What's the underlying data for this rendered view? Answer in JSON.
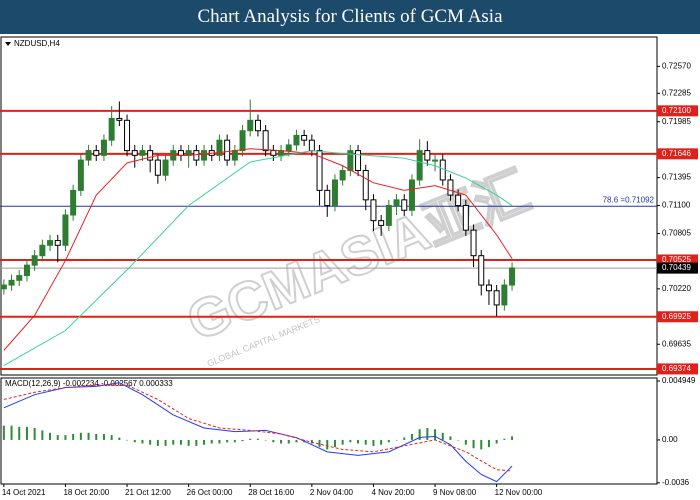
{
  "title": "Chart Analysis for Clients of GCM Asia",
  "watermark": "GCMASIA亚汇",
  "watermark_sub": "GLOBAL CAPITAL MARKETS",
  "chart_data": [
    {
      "type": "candlestick",
      "symbol_label": "NZDUSD,H4",
      "categories": [
        "14 Oct 2021",
        null,
        null,
        null,
        null,
        null,
        null,
        null,
        "18 Oct 20:00",
        null,
        null,
        null,
        null,
        null,
        null,
        null,
        "21 Oct 12:00",
        null,
        null,
        null,
        null,
        null,
        null,
        null,
        "26 Oct 00:00",
        null,
        null,
        null,
        null,
        null,
        null,
        null,
        "28 Oct 16:00",
        null,
        null,
        null,
        null,
        null,
        null,
        null,
        "2 Nov 04:00",
        null,
        null,
        null,
        null,
        null,
        null,
        null,
        "4 Nov 20:00",
        null,
        null,
        null,
        null,
        null,
        null,
        null,
        "9 Nov 08:00",
        null,
        null,
        null,
        null,
        null,
        null,
        null,
        "12 Nov 00:00",
        null,
        null
      ],
      "open": [
        0.7022,
        0.7026,
        0.7031,
        0.7036,
        0.7047,
        0.7057,
        0.7068,
        0.7073,
        0.7068,
        0.71,
        0.7126,
        0.7158,
        0.7168,
        0.7163,
        0.7179,
        0.7202,
        0.72,
        0.7168,
        0.7163,
        0.7168,
        0.7158,
        0.7142,
        0.7158,
        0.7168,
        0.7163,
        0.7168,
        0.7158,
        0.7168,
        0.7163,
        0.7179,
        0.7158,
        0.7168,
        0.7189,
        0.72,
        0.7189,
        0.7168,
        0.7163,
        0.7168,
        0.7174,
        0.7184,
        0.7179,
        0.7168,
        0.7126,
        0.711,
        0.7137,
        0.7147,
        0.7168,
        0.7147,
        0.7116,
        0.7094,
        0.7089,
        0.711,
        0.7116,
        0.7105,
        0.7137,
        0.7168,
        0.7158,
        0.7158,
        0.7137,
        0.7121,
        0.711,
        0.7084,
        0.7057,
        0.7026,
        0.702,
        0.7005,
        0.7026
      ],
      "high": [
        0.7032,
        0.7037,
        0.7042,
        0.7053,
        0.7063,
        0.7074,
        0.7079,
        0.7079,
        0.7106,
        0.7132,
        0.7164,
        0.7174,
        0.7174,
        0.7185,
        0.7215,
        0.722,
        0.7206,
        0.7174,
        0.7174,
        0.7174,
        0.7164,
        0.7164,
        0.7174,
        0.7174,
        0.7174,
        0.7174,
        0.7174,
        0.7174,
        0.7185,
        0.7185,
        0.7174,
        0.7195,
        0.7222,
        0.7206,
        0.7195,
        0.7174,
        0.7174,
        0.718,
        0.719,
        0.719,
        0.7185,
        0.7174,
        0.7132,
        0.7143,
        0.7153,
        0.7174,
        0.7174,
        0.7153,
        0.7122,
        0.71,
        0.7116,
        0.7122,
        0.7122,
        0.7143,
        0.718,
        0.7178,
        0.7164,
        0.7164,
        0.7143,
        0.7127,
        0.7116,
        0.709,
        0.7063,
        0.7032,
        0.7026,
        0.7032,
        0.705
      ],
      "low": [
        0.7016,
        0.702,
        0.7025,
        0.703,
        0.7041,
        0.7051,
        0.7062,
        0.705,
        0.7062,
        0.7094,
        0.712,
        0.7152,
        0.7157,
        0.7157,
        0.7173,
        0.7194,
        0.7162,
        0.715,
        0.7157,
        0.7145,
        0.7133,
        0.7136,
        0.7152,
        0.7157,
        0.715,
        0.7152,
        0.7152,
        0.7157,
        0.7157,
        0.7152,
        0.7152,
        0.7162,
        0.7183,
        0.7183,
        0.7162,
        0.7157,
        0.7157,
        0.7162,
        0.7168,
        0.7173,
        0.7162,
        0.711,
        0.7098,
        0.7104,
        0.7131,
        0.7141,
        0.7141,
        0.7105,
        0.7083,
        0.7078,
        0.7083,
        0.71,
        0.7099,
        0.7099,
        0.7131,
        0.7152,
        0.7146,
        0.7131,
        0.7115,
        0.7104,
        0.7078,
        0.7045,
        0.7015,
        0.7005,
        0.6993,
        0.6999,
        0.702
      ],
      "close": [
        0.7026,
        0.7031,
        0.7036,
        0.7047,
        0.7057,
        0.7068,
        0.7073,
        0.7068,
        0.71,
        0.7126,
        0.7158,
        0.7168,
        0.7163,
        0.7179,
        0.7202,
        0.72,
        0.7168,
        0.7163,
        0.7168,
        0.7158,
        0.7142,
        0.7158,
        0.7168,
        0.7163,
        0.7168,
        0.7158,
        0.7168,
        0.7163,
        0.7179,
        0.7158,
        0.7168,
        0.7189,
        0.72,
        0.7189,
        0.7168,
        0.7163,
        0.7168,
        0.7174,
        0.7184,
        0.7179,
        0.7168,
        0.7126,
        0.711,
        0.7137,
        0.7147,
        0.7168,
        0.7147,
        0.7116,
        0.7094,
        0.7089,
        0.711,
        0.7116,
        0.7105,
        0.7137,
        0.7168,
        0.7158,
        0.7158,
        0.7137,
        0.7121,
        0.711,
        0.7084,
        0.7057,
        0.7026,
        0.702,
        0.7005,
        0.7026,
        0.7044
      ],
      "up_color": "#2e7d32",
      "down_color": "#000000",
      "lines": [
        {
          "color": "#e8201e",
          "x": [
            0,
            4,
            8,
            12,
            16,
            20,
            24,
            28,
            32,
            36,
            40,
            44,
            48,
            52,
            56,
            60,
            64,
            66
          ],
          "values": [
            0.6957,
            0.6994,
            0.7052,
            0.7121,
            0.7155,
            0.7163,
            0.7163,
            0.7166,
            0.717,
            0.7168,
            0.7165,
            0.7152,
            0.7134,
            0.7126,
            0.7131,
            0.7121,
            0.7079,
            0.7054
          ]
        },
        {
          "color": "#3cd09a",
          "x": [
            0,
            8,
            16,
            24,
            32,
            40,
            44,
            52,
            56,
            60,
            64,
            66
          ],
          "values": [
            0.6941,
            0.6978,
            0.7042,
            0.711,
            0.7156,
            0.7168,
            0.7165,
            0.716,
            0.7152,
            0.7139,
            0.7121,
            0.711
          ]
        }
      ],
      "levels": [
        {
          "value": 0.721,
          "label": "0.72100",
          "color": "#e0201a"
        },
        {
          "value": 0.71646,
          "label": "0.71646",
          "color": "#e0201a"
        },
        {
          "value": 0.71092,
          "label": "78.6 =0.71092",
          "color": "#2233aa"
        },
        {
          "value": 0.70525,
          "label": "0.70525",
          "color": "#e0201a"
        },
        {
          "value": 0.70439,
          "label": "0.70439",
          "color": "#9a9a9a"
        },
        {
          "value": 0.69925,
          "label": "0.69925",
          "color": "#e0201a"
        },
        {
          "value": 0.69374,
          "label": "0.69374",
          "color": "#e0201a"
        }
      ],
      "ylim": [
        0.6931,
        0.7288
      ],
      "yticks": [
        {
          "value": 0.7257,
          "label": "0.72570"
        },
        {
          "value": 0.72285,
          "label": "0.72285"
        },
        {
          "value": 0.71985,
          "label": "0.71985"
        },
        {
          "value": 0.71395,
          "label": "0.71395"
        },
        {
          "value": 0.711,
          "label": "0.71100"
        },
        {
          "value": 0.70805,
          "label": "0.70805"
        },
        {
          "value": 0.7022,
          "label": "0.70220"
        },
        {
          "value": 0.69635,
          "label": "0.69635"
        }
      ]
    },
    {
      "type": "macd",
      "label": "MACD(12,26,9) -0.002234 -0.002567 0.000333",
      "histogram": {
        "color": "#2e8b3a",
        "values": [
          0.0012,
          0.0012,
          0.0011,
          0.0011,
          0.001,
          0.0008,
          0.0006,
          0.0004,
          0.0004,
          0.0005,
          0.0006,
          0.0006,
          0.0005,
          0.0005,
          0.0004,
          0.0002,
          0,
          -0.0002,
          -0.0003,
          -0.0004,
          -0.0005,
          -0.0005,
          -0.0004,
          -0.0004,
          -0.0005,
          -0.0005,
          -0.0004,
          -0.0003,
          -0.0003,
          -0.0002,
          -0.0002,
          -0.0001,
          0.0001,
          0.0001,
          0,
          -0.0002,
          -0.0003,
          -0.0003,
          -0.0002,
          -0.0002,
          -0.0003,
          -0.0006,
          -0.0008,
          -0.0006,
          -0.0004,
          -0.0002,
          -0.0003,
          -0.0004,
          -0.0005,
          -0.0004,
          -0.0002,
          0,
          0.0002,
          0.0005,
          0.0009,
          0.001,
          0.0009,
          0.0006,
          0.0003,
          0,
          -0.0004,
          -0.0007,
          -0.0008,
          -0.0006,
          -0.0003,
          0.0001,
          0.0003
        ]
      },
      "lines": [
        {
          "color": "#1e3cff",
          "x": [
            0,
            4,
            8,
            12,
            15,
            18,
            22,
            26,
            30,
            34,
            38,
            42,
            46,
            50,
            54,
            56,
            58,
            60,
            62,
            64,
            66
          ],
          "values": [
            0.0027,
            0.0038,
            0.0044,
            0.0045,
            0.0048,
            0.0038,
            0.0021,
            0.001,
            0.0007,
            0.0008,
            0.0002,
            -0.001,
            -0.0013,
            -0.001,
            0.0002,
            0.0003,
            -0.0004,
            -0.0018,
            -0.0029,
            -0.0035,
            -0.0022
          ]
        },
        {
          "color": "#e8201e",
          "dashed": true,
          "x": [
            0,
            4,
            8,
            12,
            16,
            20,
            24,
            28,
            32,
            36,
            40,
            44,
            48,
            52,
            56,
            60,
            64,
            66
          ],
          "values": [
            0.0034,
            0.004,
            0.0044,
            0.0046,
            0.0046,
            0.0034,
            0.0018,
            0.001,
            0.0008,
            0.0005,
            -0.0002,
            -0.0008,
            -0.001,
            -0.0005,
            0,
            -0.001,
            -0.0025,
            -0.0026
          ]
        }
      ],
      "ylim": [
        -0.0037,
        0.0052
      ],
      "yticks": [
        {
          "value": 0.004949,
          "label": "0.004949"
        },
        {
          "value": 0,
          "label": "0.00"
        },
        {
          "value": -0.0036,
          "label": "-0.0036"
        }
      ]
    }
  ]
}
